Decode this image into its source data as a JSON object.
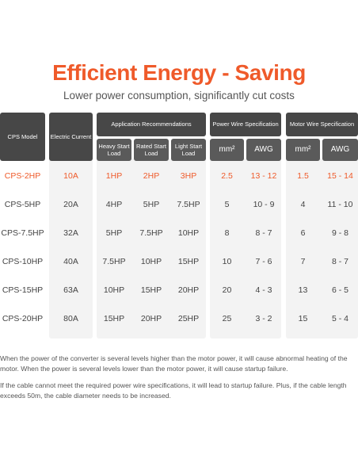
{
  "title": "Efficient Energy - Saving",
  "subtitle": "Lower power consumption, significantly cut costs",
  "headers": {
    "model": "CPS Model",
    "current": "Electric Current",
    "app": "Application Recommendations",
    "power_wire": "Power Wire Specification",
    "motor_wire": "Motor Wire Specification",
    "heavy": "Heavy Start Load",
    "rated": "Rated Start Load",
    "light": "Light Start Load",
    "power_mm2": "mm²",
    "power_awg": "AWG",
    "motor_mm2": "mm²",
    "motor_awg": "AWG"
  },
  "rows": [
    [
      "CPS-2HP",
      "10A",
      "1HP",
      "2HP",
      "3HP",
      "2.5",
      "13 - 12",
      "1.5",
      "15 - 14"
    ],
    [
      "CPS-5HP",
      "20A",
      "4HP",
      "5HP",
      "7.5HP",
      "5",
      "10 - 9",
      "4",
      "11 - 10"
    ],
    [
      "CPS-7.5HP",
      "32A",
      "5HP",
      "7.5HP",
      "10HP",
      "8",
      "8 - 7",
      "6",
      "9 - 8"
    ],
    [
      "CPS-10HP",
      "40A",
      "7.5HP",
      "10HP",
      "15HP",
      "10",
      "7 - 6",
      "7",
      "8 - 7"
    ],
    [
      "CPS-15HP",
      "63A",
      "10HP",
      "15HP",
      "20HP",
      "20",
      "4 - 3",
      "13",
      "6 - 5"
    ],
    [
      "CPS-20HP",
      "80A",
      "15HP",
      "20HP",
      "25HP",
      "25",
      "3 - 2",
      "15",
      "5 - 4"
    ]
  ],
  "highlight_color": "#ef5a2a",
  "notes": [
    "When the power of the converter is several levels higher than the motor power, it will cause abnormal heating of the motor. When the power is several levels lower than the motor power, it will cause startup failure.",
    "If the cable cannot meet the required power wire specifications, it will lead to startup failure. Plus, if the cable length exceeds 50m, the cable diameter needs to be increased."
  ]
}
